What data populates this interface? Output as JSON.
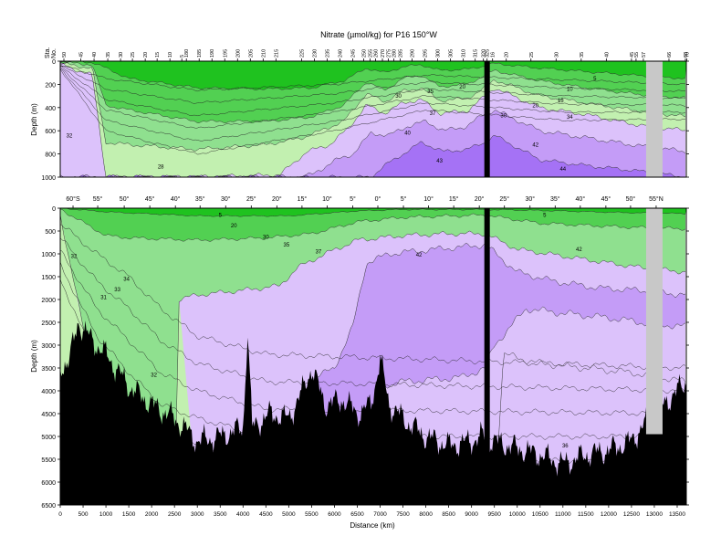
{
  "chart_data": {
    "type": "heatmap",
    "title": "Nitrate (µmol/kg) for P16 150°W",
    "colors": {
      "green_dark": "#1fc21f",
      "green_mid": "#52d052",
      "green_light": "#8fe08f",
      "green_pale": "#c2f0b0",
      "purple_pale": "#dcc2fb",
      "purple_light": "#c49cf7",
      "purple_mid": "#a572f5",
      "purple_dark": "#8a3ff2",
      "bathymetry": "#000000",
      "gap": "#c8c8c8"
    },
    "station_axis": {
      "label_line1": "Sta.",
      "label_line2": "No.",
      "ticks": [
        {
          "label": "50",
          "km": 80
        },
        {
          "label": "45",
          "km": 450
        },
        {
          "label": "40",
          "km": 740
        },
        {
          "label": "35",
          "km": 1040
        },
        {
          "label": "30",
          "km": 1320
        },
        {
          "label": "25",
          "km": 1580
        },
        {
          "label": "20",
          "km": 1860
        },
        {
          "label": "15",
          "km": 2120
        },
        {
          "label": "10",
          "km": 2400
        },
        {
          "label": "5",
          "km": 2660
        },
        {
          "label": "180",
          "km": 2760
        },
        {
          "label": "185",
          "km": 3040
        },
        {
          "label": "190",
          "km": 3320
        },
        {
          "label": "195",
          "km": 3600
        },
        {
          "label": "200",
          "km": 3880
        },
        {
          "label": "205",
          "km": 4160
        },
        {
          "label": "210",
          "km": 4440
        },
        {
          "label": "215",
          "km": 4720
        },
        {
          "label": "225",
          "km": 5280
        },
        {
          "label": "230",
          "km": 5560
        },
        {
          "label": "235",
          "km": 5840
        },
        {
          "label": "240",
          "km": 6120
        },
        {
          "label": "245",
          "km": 6400
        },
        {
          "label": "250",
          "km": 6640
        },
        {
          "label": "255",
          "km": 6780
        },
        {
          "label": "260",
          "km": 6900
        },
        {
          "label": "270",
          "km": 7050
        },
        {
          "label": "275",
          "km": 7180
        },
        {
          "label": "280",
          "km": 7300
        },
        {
          "label": "285",
          "km": 7440
        },
        {
          "label": "290",
          "km": 7700
        },
        {
          "label": "295",
          "km": 7980
        },
        {
          "label": "300",
          "km": 8260
        },
        {
          "label": "305",
          "km": 8540
        },
        {
          "label": "310",
          "km": 8820
        },
        {
          "label": "315",
          "km": 9080
        },
        {
          "label": "320",
          "km": 9260
        },
        {
          "label": "325",
          "km": 9340
        },
        {
          "label": "16",
          "km": 9460
        },
        {
          "label": "20",
          "km": 9760
        },
        {
          "label": "25",
          "km": 10300
        },
        {
          "label": "30",
          "km": 10850
        },
        {
          "label": "35",
          "km": 11400
        },
        {
          "label": "40",
          "km": 11950
        },
        {
          "label": "45",
          "km": 12500
        },
        {
          "label": "55",
          "km": 12600
        },
        {
          "label": "57",
          "km": 12760
        },
        {
          "label": "66",
          "km": 13320
        },
        {
          "label": "68",
          "km": 13680
        },
        {
          "label": "70",
          "km": 13710
        }
      ]
    },
    "latitude_axis": {
      "ticks": [
        {
          "label": "60°S",
          "km": 280
        },
        {
          "label": "55°",
          "km": 820
        },
        {
          "label": "50°",
          "km": 1400
        },
        {
          "label": "45°",
          "km": 1960
        },
        {
          "label": "40°",
          "km": 2520
        },
        {
          "label": "35°",
          "km": 3060
        },
        {
          "label": "30°",
          "km": 3620
        },
        {
          "label": "25°",
          "km": 4180
        },
        {
          "label": "20°",
          "km": 4740
        },
        {
          "label": "15°",
          "km": 5290
        },
        {
          "label": "10°",
          "km": 5840
        },
        {
          "label": "5°",
          "km": 6400
        },
        {
          "label": "0°",
          "km": 6950
        },
        {
          "label": "5°",
          "km": 7510
        },
        {
          "label": "10°",
          "km": 8060
        },
        {
          "label": "15°",
          "km": 8610
        },
        {
          "label": "20°",
          "km": 9170
        },
        {
          "label": "25°",
          "km": 9720
        },
        {
          "label": "30°",
          "km": 10280
        },
        {
          "label": "35°",
          "km": 10830
        },
        {
          "label": "40°",
          "km": 11380
        },
        {
          "label": "45°",
          "km": 11940
        },
        {
          "label": "50°",
          "km": 12480
        },
        {
          "label": "55°N",
          "km": 13040
        }
      ]
    },
    "top_panel": {
      "ylabel": "Depth (m)",
      "ylim": [
        0,
        1000
      ],
      "yticks": [
        0,
        200,
        400,
        600,
        800,
        1000
      ],
      "contour_labels": [
        {
          "text": "32",
          "km": 200,
          "depth": 640
        },
        {
          "text": "28",
          "km": 2200,
          "depth": 910
        },
        {
          "text": "30",
          "km": 7400,
          "depth": 300
        },
        {
          "text": "35",
          "km": 8100,
          "depth": 260
        },
        {
          "text": "37",
          "km": 8150,
          "depth": 450
        },
        {
          "text": "40",
          "km": 7600,
          "depth": 620
        },
        {
          "text": "43",
          "km": 8300,
          "depth": 860
        },
        {
          "text": "20",
          "km": 8800,
          "depth": 220
        },
        {
          "text": "30",
          "km": 9700,
          "depth": 470
        },
        {
          "text": "5",
          "km": 11700,
          "depth": 150
        },
        {
          "text": "10",
          "km": 11150,
          "depth": 240
        },
        {
          "text": "15",
          "km": 10950,
          "depth": 340
        },
        {
          "text": "20",
          "km": 10400,
          "depth": 380
        },
        {
          "text": "34",
          "km": 11150,
          "depth": 480
        },
        {
          "text": "42",
          "km": 10400,
          "depth": 720
        },
        {
          "text": "44",
          "km": 11000,
          "depth": 930
        }
      ]
    },
    "bottom_panel": {
      "ylabel": "Depth (m)",
      "ylim": [
        0,
        6500
      ],
      "yticks": [
        0,
        500,
        1000,
        1500,
        2000,
        2500,
        3000,
        3500,
        4000,
        4500,
        5000,
        5500,
        6000,
        6500
      ],
      "xlabel": "Distance (km)",
      "xlim": [
        0,
        13700
      ],
      "xticks": [
        0,
        500,
        1000,
        1500,
        2000,
        2500,
        3000,
        3500,
        4000,
        4500,
        5000,
        5500,
        6000,
        6500,
        7000,
        7500,
        8000,
        8500,
        9000,
        9500,
        10000,
        10500,
        11000,
        11500,
        12000,
        12500,
        13000,
        13500
      ],
      "contour_labels": [
        {
          "text": "5",
          "km": 3500,
          "depth": 150
        },
        {
          "text": "20",
          "km": 3800,
          "depth": 380
        },
        {
          "text": "30",
          "km": 4500,
          "depth": 630
        },
        {
          "text": "35",
          "km": 4950,
          "depth": 800
        },
        {
          "text": "37",
          "km": 5650,
          "depth": 950
        },
        {
          "text": "42",
          "km": 7850,
          "depth": 1020
        },
        {
          "text": "5",
          "km": 10600,
          "depth": 150
        },
        {
          "text": "42",
          "km": 11350,
          "depth": 900
        },
        {
          "text": "32",
          "km": 300,
          "depth": 1050
        },
        {
          "text": "34",
          "km": 1450,
          "depth": 1550
        },
        {
          "text": "33",
          "km": 1250,
          "depth": 1780
        },
        {
          "text": "31",
          "km": 950,
          "depth": 1950
        },
        {
          "text": "32",
          "km": 2050,
          "depth": 3650
        },
        {
          "text": "36",
          "km": 11050,
          "depth": 5200
        }
      ]
    }
  }
}
